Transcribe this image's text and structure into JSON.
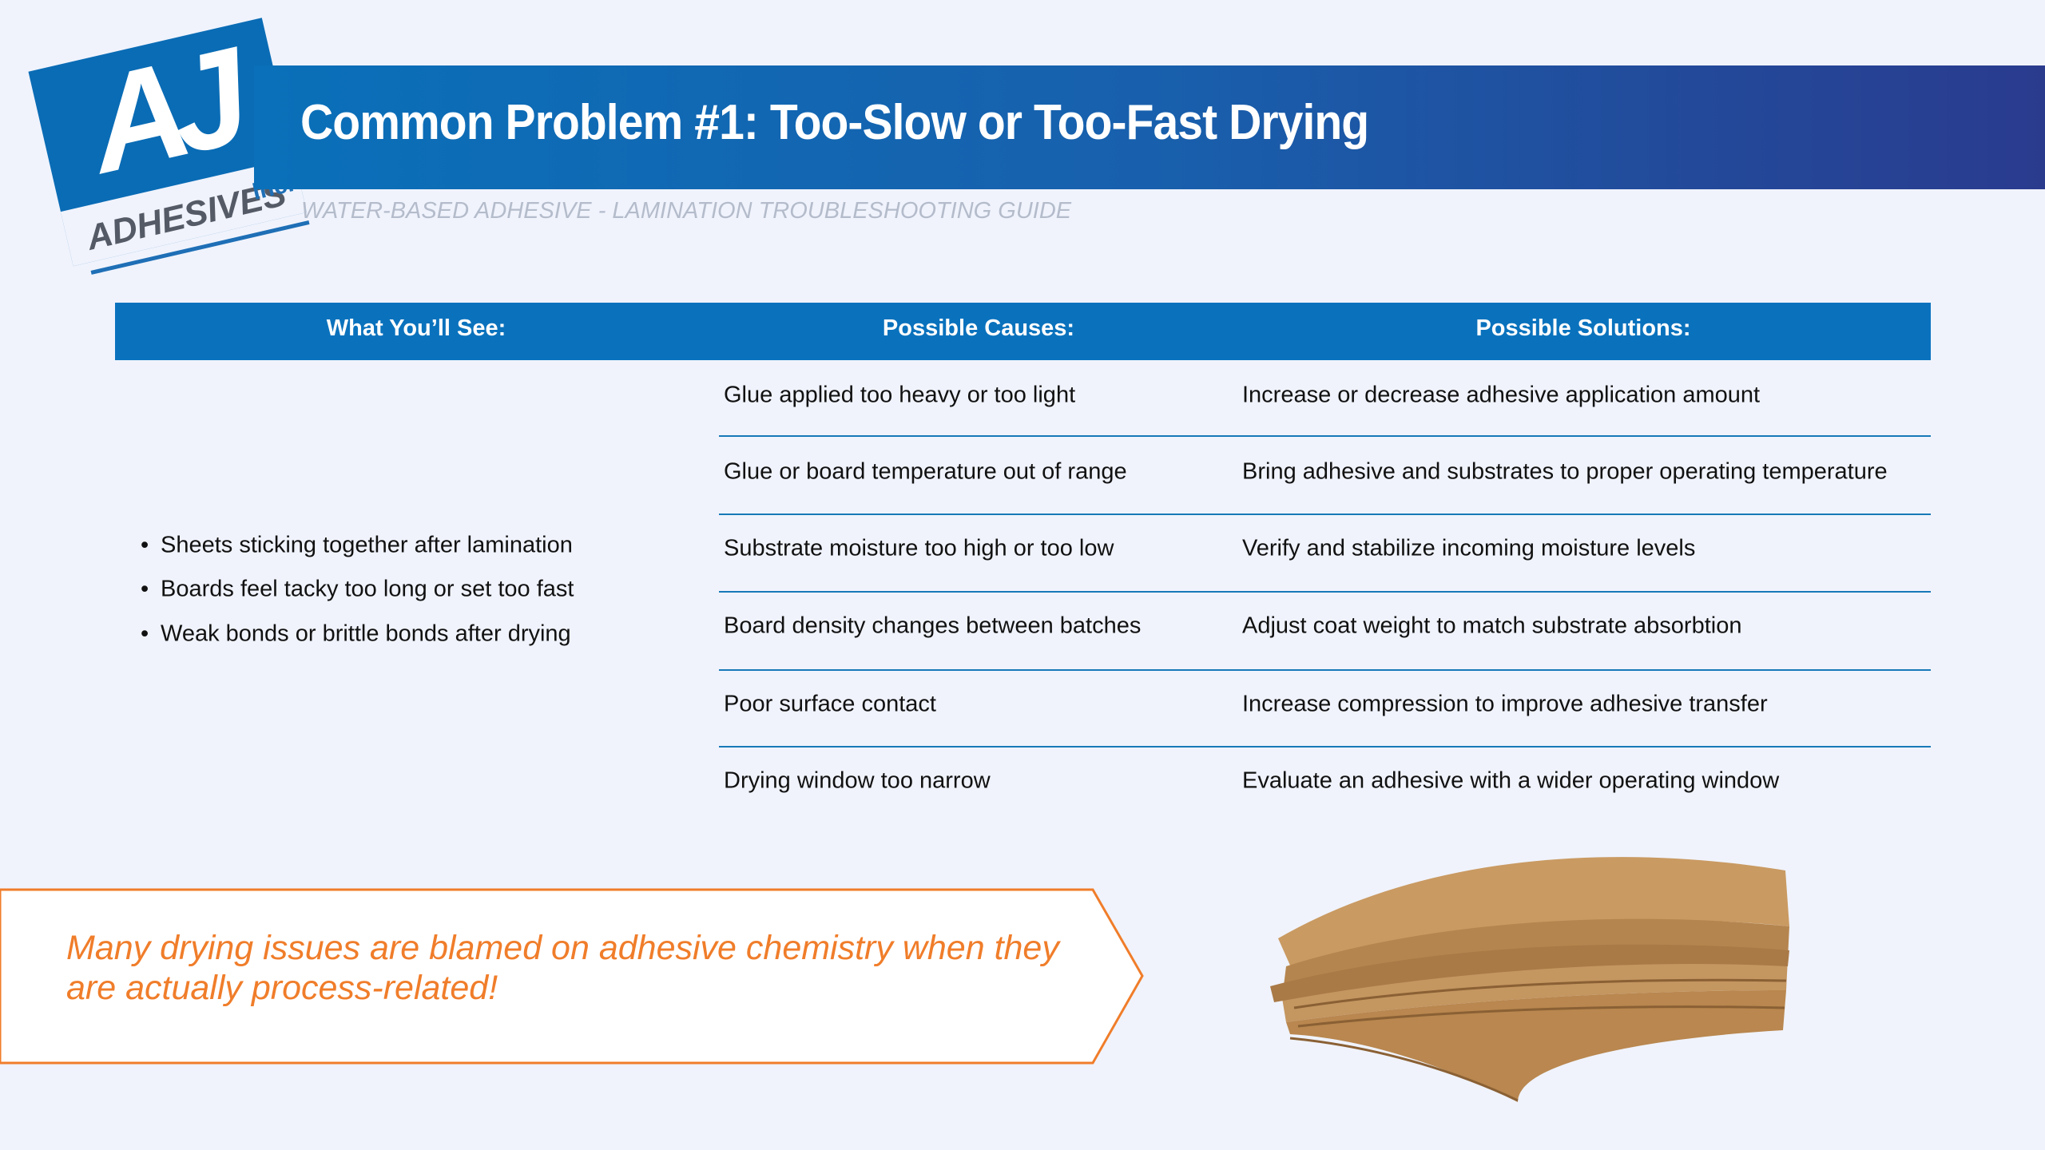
{
  "logo": {
    "brand": "AJ",
    "name": "ADHESIVES",
    "suffix": "Inc."
  },
  "header": {
    "title": "Common Problem #1: Too-Slow or Too-Fast Drying",
    "subtitle": "WATER-BASED ADHESIVE - LAMINATION TROUBLESHOOTING GUIDE"
  },
  "table": {
    "columns": [
      "What You’ll See:",
      "Possible Causes:",
      "Possible Solutions:"
    ],
    "symptoms": [
      "Sheets sticking together after lamination",
      "Boards feel tacky too long or set too fast",
      "Weak bonds or brittle bonds after drying"
    ],
    "rows": [
      [
        "Glue applied too heavy or too light",
        "Increase or decrease adhesive application amount"
      ],
      [
        "Glue or board temperature out of range",
        "Bring adhesive and substrates to proper operating temperature"
      ],
      [
        "Substrate moisture too high or too low",
        "Verify and stabilize incoming moisture levels"
      ],
      [
        "Board density changes between batches",
        "Adjust coat weight to match substrate absorbtion"
      ],
      [
        "Poor surface contact",
        "Increase compression to improve adhesive transfer"
      ],
      [
        "Drying window too narrow",
        "Evaluate an adhesive with a wider operating window"
      ]
    ]
  },
  "callout": "Many drying issues are blamed on adhesive chemistry when they are actually process-related!"
}
